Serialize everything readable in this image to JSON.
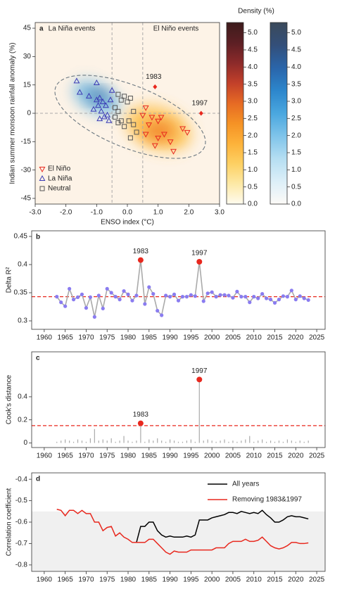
{
  "chart_data": [
    {
      "type": "scatter",
      "title": "a",
      "xlabel": "ENSO index (°C)",
      "ylabel": "Indian summer monsoon rainfall anomaly (%)",
      "xlim": [
        -3,
        3
      ],
      "ylim": [
        -48,
        48
      ],
      "xticks": [
        {
          "value": -3,
          "label": "-3.0"
        },
        {
          "value": -2,
          "label": "-2.0"
        },
        {
          "value": -1,
          "label": "-1.0"
        },
        {
          "value": 0,
          "label": "0.0"
        },
        {
          "value": 1,
          "label": "1.0"
        },
        {
          "value": 2,
          "label": "2.0"
        },
        {
          "value": 3,
          "label": "3.0"
        }
      ],
      "yticks": [
        45,
        30,
        15,
        0,
        -15,
        -30,
        -45
      ],
      "ref_x": [
        -0.5,
        0.5
      ],
      "ref_y": [
        0
      ],
      "annotations": [
        {
          "text": "La Niña events",
          "color": "#4a3fc0"
        },
        {
          "text": "El Niño events",
          "color": "#e8281e"
        }
      ],
      "series": [
        {
          "name": "El Niño",
          "color": "#e8281e",
          "marker": "tri-down",
          "x": [
            0.6,
            0.8,
            1.0,
            0.7,
            1.0,
            1.2,
            1.4,
            0.9,
            1.5,
            1.8,
            1.95,
            0.6,
            0.5,
            1.1
          ],
          "values": [
            3,
            -2,
            -4,
            -6,
            -13,
            -11,
            -15,
            -17,
            -20,
            -8,
            -10,
            -11,
            -1,
            -2
          ]
        },
        {
          "name": "La Niña",
          "color": "#3a3ab5",
          "marker": "tri-up",
          "x": [
            -1.65,
            -1.55,
            -1.0,
            -1.25,
            -1.0,
            -0.9,
            -0.8,
            -0.7,
            -0.95,
            -1.1,
            -0.85,
            -0.65,
            -0.75,
            -0.9,
            -0.6,
            -0.5,
            -0.55
          ],
          "values": [
            17,
            11,
            16,
            9,
            7,
            8,
            6,
            4,
            4,
            2,
            1,
            -1,
            -2,
            -3,
            -4,
            12,
            7
          ]
        },
        {
          "name": "Neutral",
          "color": "#555555",
          "marker": "square",
          "x": [
            -0.3,
            -0.1,
            -0.2,
            0.1,
            0,
            -0.4,
            -0.3,
            0.2,
            -0.4,
            -0.2,
            0.05,
            -0.1,
            0.2,
            0.3,
            0.1,
            -0.3
          ],
          "values": [
            10,
            9,
            7,
            8,
            6,
            3,
            1,
            1,
            -2,
            -4,
            -4,
            -7,
            -6,
            -10,
            -13,
            -5
          ]
        }
      ],
      "highlights": [
        {
          "label": "1983",
          "x": 0.9,
          "y": 14,
          "color": "#e8281e"
        },
        {
          "label": "1997",
          "x": 2.4,
          "y": 0,
          "color": "#e8281e"
        }
      ],
      "colorbar": {
        "title": "Density (%)",
        "lim": [
          0,
          5.3
        ],
        "ticks": [
          {
            "value": 0,
            "label": "0.0"
          },
          {
            "value": 0.5,
            "label": "0.5"
          },
          {
            "value": 1,
            "label": "1.0"
          },
          {
            "value": 1.5,
            "label": "1.5"
          },
          {
            "value": 2,
            "label": "2.0"
          },
          {
            "value": 2.5,
            "label": "2.5"
          },
          {
            "value": 3,
            "label": "3.0"
          },
          {
            "value": 3.5,
            "label": "3.5"
          },
          {
            "value": 4,
            "label": "4.0"
          },
          {
            "value": 4.5,
            "label": "4.5"
          },
          {
            "value": 5,
            "label": "5.0"
          }
        ],
        "colormaps": [
          [
            "#fffbef",
            "#fde9a6",
            "#fdd063",
            "#fdb23a",
            "#f59225",
            "#e66a24",
            "#c2402a",
            "#8c2a2a",
            "#5c1f24",
            "#3d1c1c"
          ],
          [
            "#fcfaf7",
            "#dceff8",
            "#b5def2",
            "#7fc4ea",
            "#4aa7df",
            "#2c86cc",
            "#2a65aa",
            "#334f7a",
            "#3b4a5a"
          ]
        ]
      }
    },
    {
      "type": "line",
      "title": "b",
      "ylabel": "Delta R²",
      "xlim": [
        1957,
        2027
      ],
      "ylim": [
        0.285,
        0.46
      ],
      "xticks": [
        1960,
        1965,
        1970,
        1975,
        1980,
        1985,
        1990,
        1995,
        2000,
        2005,
        2010,
        2015,
        2020,
        2025
      ],
      "yticks": [
        0.3,
        0.35,
        0.4,
        0.45
      ],
      "markers": true,
      "marker_color": "#8a7cf0",
      "hline": {
        "value": 0.343,
        "color": "#e8281e"
      },
      "annotations": [
        "1983",
        "1997"
      ],
      "highlight_color": "#e8281e",
      "x": [
        1963,
        1964,
        1965,
        1966,
        1967,
        1968,
        1969,
        1970,
        1971,
        1972,
        1973,
        1974,
        1975,
        1976,
        1977,
        1978,
        1979,
        1980,
        1981,
        1982,
        1983,
        1984,
        1985,
        1986,
        1987,
        1988,
        1989,
        1990,
        1991,
        1992,
        1993,
        1994,
        1995,
        1996,
        1997,
        1998,
        1999,
        2000,
        2001,
        2002,
        2003,
        2004,
        2005,
        2006,
        2007,
        2008,
        2009,
        2010,
        2011,
        2012,
        2013,
        2014,
        2015,
        2016,
        2017,
        2018,
        2019,
        2020,
        2021,
        2022,
        2023
      ],
      "series": [
        {
          "color": "#aaaaaa",
          "values": [
            0.343,
            0.333,
            0.326,
            0.357,
            0.338,
            0.342,
            0.347,
            0.323,
            0.342,
            0.307,
            0.345,
            0.322,
            0.357,
            0.35,
            0.343,
            0.338,
            0.353,
            0.347,
            0.336,
            0.345,
            0.408,
            0.33,
            0.36,
            0.348,
            0.318,
            0.31,
            0.345,
            0.343,
            0.347,
            0.336,
            0.343,
            0.343,
            0.346,
            0.344,
            0.405,
            0.335,
            0.349,
            0.351,
            0.343,
            0.346,
            0.346,
            0.345,
            0.341,
            0.352,
            0.343,
            0.343,
            0.333,
            0.343,
            0.34,
            0.348,
            0.34,
            0.338,
            0.332,
            0.338,
            0.344,
            0.343,
            0.354,
            0.338,
            0.344,
            0.34,
            0.337
          ]
        }
      ]
    },
    {
      "type": "bar",
      "title": "c",
      "ylabel": "Cook's distance",
      "xlim": [
        1957,
        2027
      ],
      "ylim": [
        -0.04,
        0.79
      ],
      "xticks": [
        1960,
        1965,
        1970,
        1975,
        1980,
        1985,
        1990,
        1995,
        2000,
        2005,
        2010,
        2015,
        2020,
        2025
      ],
      "yticks": [
        0,
        0.2,
        0.4
      ],
      "hline": {
        "value": 0.15,
        "color": "#e8281e"
      },
      "annotations": [
        "1983",
        "1997"
      ],
      "highlight_color": "#e8281e",
      "x": [
        1963,
        1964,
        1965,
        1966,
        1967,
        1968,
        1969,
        1970,
        1971,
        1972,
        1973,
        1974,
        1975,
        1976,
        1977,
        1978,
        1979,
        1980,
        1981,
        1982,
        1983,
        1984,
        1985,
        1986,
        1987,
        1988,
        1989,
        1990,
        1991,
        1992,
        1993,
        1994,
        1995,
        1996,
        1997,
        1998,
        1999,
        2000,
        2001,
        2002,
        2003,
        2004,
        2005,
        2006,
        2007,
        2008,
        2009,
        2010,
        2011,
        2012,
        2013,
        2014,
        2015,
        2016,
        2017,
        2018,
        2019,
        2020,
        2021,
        2022,
        2023
      ],
      "series": [
        {
          "color": "#aaaaaa",
          "values": [
            0.01,
            0.02,
            0.03,
            0.02,
            0.01,
            0.03,
            0.02,
            0.01,
            0.04,
            0.12,
            0.02,
            0.03,
            0.02,
            0.04,
            0.01,
            0.02,
            0.06,
            0.02,
            0.01,
            0.02,
            0.17,
            0.01,
            0.03,
            0.02,
            0.04,
            0.02,
            0.01,
            0.03,
            0.02,
            0.01,
            0.01,
            0.02,
            0.03,
            0.01,
            0.55,
            0.02,
            0.03,
            0.02,
            0.01,
            0.02,
            0.03,
            0.01,
            0.02,
            0.01,
            0.02,
            0.03,
            0.06,
            0.01,
            0.02,
            0.03,
            0.01,
            0.02,
            0.01,
            0.02,
            0.01,
            0.03,
            0.02,
            0.01,
            0.02,
            0.01,
            0.02
          ]
        }
      ]
    },
    {
      "type": "line",
      "title": "d",
      "ylabel": "Correlation coefficient",
      "xlim": [
        1957,
        2027
      ],
      "ylim": [
        -0.83,
        -0.37
      ],
      "xticks": [
        1960,
        1965,
        1970,
        1975,
        1980,
        1985,
        1990,
        1995,
        2000,
        2005,
        2010,
        2015,
        2020,
        2025
      ],
      "yticks": [
        -0.8,
        -0.7,
        -0.6,
        -0.5,
        -0.4
      ],
      "shade_max": -0.55,
      "shade_color": "#f0f0f0",
      "x": [
        1963,
        1964,
        1965,
        1966,
        1967,
        1968,
        1969,
        1970,
        1971,
        1972,
        1973,
        1974,
        1975,
        1976,
        1977,
        1978,
        1979,
        1980,
        1981,
        1982,
        1983,
        1984,
        1985,
        1986,
        1987,
        1988,
        1989,
        1990,
        1991,
        1992,
        1993,
        1994,
        1995,
        1996,
        1997,
        1998,
        1999,
        2000,
        2001,
        2002,
        2003,
        2004,
        2005,
        2006,
        2007,
        2008,
        2009,
        2010,
        2011,
        2012,
        2013,
        2014,
        2015,
        2016,
        2017,
        2018,
        2019,
        2020,
        2021,
        2022,
        2023
      ],
      "series": [
        {
          "name": "All years",
          "color": "#000000",
          "values": [
            null,
            null,
            null,
            null,
            null,
            null,
            null,
            null,
            null,
            null,
            null,
            null,
            null,
            null,
            null,
            null,
            null,
            null,
            null,
            -0.695,
            -0.62,
            -0.62,
            -0.6,
            -0.6,
            -0.64,
            -0.66,
            -0.67,
            -0.665,
            -0.67,
            -0.67,
            -0.67,
            -0.665,
            -0.67,
            -0.66,
            -0.59,
            -0.59,
            -0.59,
            -0.58,
            -0.575,
            -0.57,
            -0.565,
            -0.555,
            -0.555,
            -0.56,
            -0.55,
            -0.555,
            -0.56,
            -0.555,
            -0.56,
            -0.545,
            -0.565,
            -0.58,
            -0.6,
            -0.6,
            -0.59,
            -0.575,
            -0.57,
            -0.575,
            -0.575,
            -0.58,
            -0.585
          ]
        },
        {
          "name": "Removing 1983&1997",
          "color": "#e8281e",
          "values": [
            -0.54,
            -0.545,
            -0.57,
            -0.545,
            -0.545,
            -0.56,
            -0.545,
            -0.56,
            -0.56,
            -0.6,
            -0.6,
            -0.64,
            -0.625,
            -0.62,
            -0.665,
            -0.65,
            -0.67,
            -0.68,
            -0.695,
            -0.695,
            -0.695,
            -0.695,
            -0.68,
            -0.68,
            -0.7,
            -0.72,
            -0.74,
            -0.75,
            -0.735,
            -0.74,
            -0.74,
            -0.74,
            -0.73,
            -0.73,
            -0.73,
            -0.73,
            -0.73,
            -0.73,
            -0.72,
            -0.72,
            -0.72,
            -0.7,
            -0.69,
            -0.69,
            -0.69,
            -0.68,
            -0.69,
            -0.69,
            -0.685,
            -0.67,
            -0.69,
            -0.71,
            -0.72,
            -0.725,
            -0.72,
            -0.71,
            -0.695,
            -0.695,
            -0.7,
            -0.7,
            -0.697
          ]
        }
      ]
    }
  ]
}
